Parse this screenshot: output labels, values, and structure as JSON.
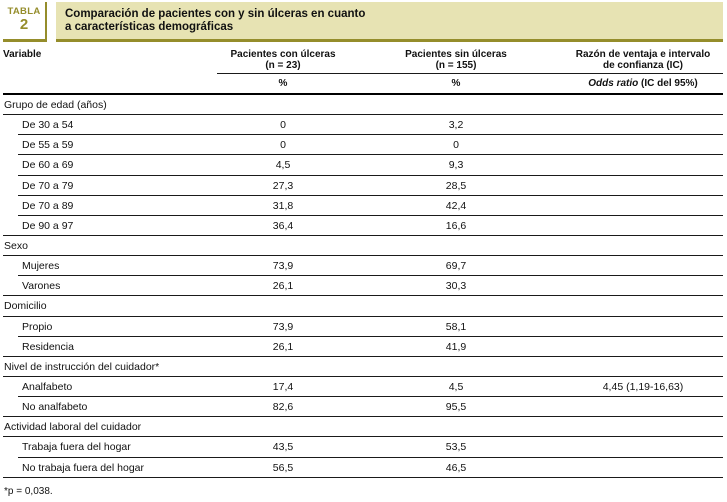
{
  "colors": {
    "olive": "#958d2b",
    "band": "#e7e3b3",
    "rule": "#1a1a1a"
  },
  "masthead": {
    "label_word": "TABLA",
    "label_number": "2",
    "title_line1": "Comparación de pacientes con y sin úlceras en cuanto",
    "title_line2": "a características demográficas"
  },
  "header": {
    "variable": "Variable",
    "con_line1": "Pacientes con úlceras",
    "con_line2": "(n = 23)",
    "sin_line1": "Pacientes sin úlceras",
    "sin_line2": "(n = 155)",
    "or_line1": "Razón de ventaja e intervalo",
    "or_line2": "de confianza (IC)",
    "con_unit": "%",
    "sin_unit": "%",
    "or_unit_italic": "Odds ratio",
    "or_unit_rest": " (IC del 95%)"
  },
  "rows": [
    {
      "type": "group",
      "label": "Grupo de edad (años)"
    },
    {
      "type": "item",
      "label": "De 30 a 54",
      "con": "0",
      "sin": "3,2"
    },
    {
      "type": "item",
      "label": "De 55 a 59",
      "con": "0",
      "sin": "0"
    },
    {
      "type": "item",
      "label": "De 60 a 69",
      "con": "4,5",
      "sin": "9,3"
    },
    {
      "type": "item",
      "label": "De 70 a 79",
      "con": "27,3",
      "sin": "28,5"
    },
    {
      "type": "item",
      "label": "De 70 a 89",
      "con": "31,8",
      "sin": "42,4"
    },
    {
      "type": "item",
      "label": "De 90 a 97",
      "con": "36,4",
      "sin": "16,6"
    },
    {
      "type": "group",
      "label": "Sexo"
    },
    {
      "type": "item",
      "label": "Mujeres",
      "con": "73,9",
      "sin": "69,7"
    },
    {
      "type": "item",
      "label": "Varones",
      "con": "26,1",
      "sin": "30,3"
    },
    {
      "type": "group",
      "label": "Domicilio"
    },
    {
      "type": "item",
      "label": "Propio",
      "con": "73,9",
      "sin": "58,1"
    },
    {
      "type": "item",
      "label": "Residencia",
      "con": "26,1",
      "sin": "41,9"
    },
    {
      "type": "group",
      "label": "Nivel de instrucción del cuidador*"
    },
    {
      "type": "item",
      "label": "Analfabeto",
      "con": "17,4",
      "sin": "4,5",
      "or": "4,45 (1,19-16,63)"
    },
    {
      "type": "item",
      "label": "No analfabeto",
      "con": "82,6",
      "sin": "95,5"
    },
    {
      "type": "group",
      "label": "Actividad laboral del cuidador"
    },
    {
      "type": "item",
      "label": "Trabaja fuera del hogar",
      "con": "43,5",
      "sin": "53,5"
    },
    {
      "type": "item",
      "label": "No trabaja fuera del hogar",
      "con": "56,5",
      "sin": "46,5"
    }
  ],
  "footnote": "*p = 0,038."
}
